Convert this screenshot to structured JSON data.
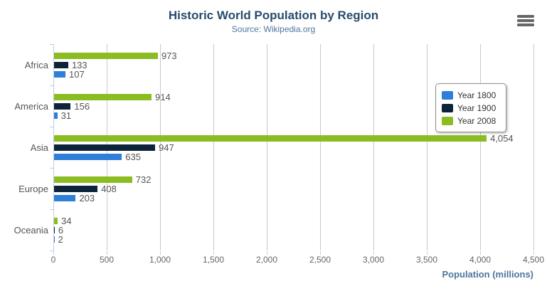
{
  "chart_data": {
    "type": "bar",
    "title": "Historic World Population by Region",
    "subtitle": "Source: Wikipedia.org",
    "categories": [
      "Africa",
      "America",
      "Asia",
      "Europe",
      "Oceania"
    ],
    "series": [
      {
        "name": "Year 1800",
        "color": "#2f7ed8",
        "values": [
          107,
          31,
          635,
          203,
          2
        ]
      },
      {
        "name": "Year 1900",
        "color": "#0d233a",
        "values": [
          133,
          156,
          947,
          408,
          6
        ]
      },
      {
        "name": "Year 2008",
        "color": "#8bbc21",
        "values": [
          973,
          914,
          4054,
          732,
          34
        ]
      }
    ],
    "data_labels": {
      "Year 1800": [
        "107",
        "31",
        "635",
        "203",
        "2"
      ],
      "Year 1900": [
        "133",
        "156",
        "947",
        "408",
        "6"
      ],
      "Year 2008": [
        "973",
        "914",
        "4,054",
        "732",
        "34"
      ]
    },
    "xlabel": "Population (millions)",
    "xlim": [
      0,
      4500
    ],
    "tick_interval": 500,
    "x_tick_labels": [
      "0",
      "500",
      "1,000",
      "1,500",
      "2,000",
      "2,500",
      "3,000",
      "3,500",
      "4,000",
      "4,500"
    ],
    "legend_position": "right",
    "grid": true,
    "bar_order_top_to_bottom": [
      "Year 2008",
      "Year 1900",
      "Year 1800"
    ]
  },
  "icons": {
    "context_menu": "hamburger-menu-icon"
  },
  "colors": {
    "title": "#274b6d",
    "subtitle": "#4d759e",
    "axis_title": "#4d759e",
    "axis_line": "#c0d0e0",
    "gridline": "#c8c8c8",
    "labels": "#555555"
  }
}
